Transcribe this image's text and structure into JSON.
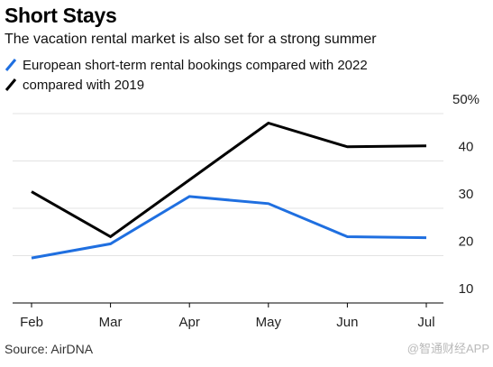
{
  "header": {
    "title": "Short Stays",
    "subtitle": "The vacation rental market is also set for a strong summer"
  },
  "legend": {
    "items": [
      {
        "label": "European short-term rental bookings compared with 2022",
        "color": "#1f6fe0"
      },
      {
        "label": "compared with 2019",
        "color": "#000000"
      }
    ]
  },
  "chart_data": {
    "type": "line",
    "categories": [
      "Feb",
      "Mar",
      "Apr",
      "May",
      "Jun",
      "Jul"
    ],
    "series": [
      {
        "name": "European short-term rental bookings compared with 2022",
        "color": "#1f6fe0",
        "values": [
          19.5,
          22.5,
          32.5,
          31,
          24,
          23.8
        ]
      },
      {
        "name": "compared with 2019",
        "color": "#000000",
        "values": [
          33.5,
          24,
          36,
          48,
          43,
          43.2
        ]
      }
    ],
    "y_ticks": [
      "50%",
      "40",
      "30",
      "20",
      "10"
    ],
    "ylim": [
      10,
      50
    ],
    "grid": true,
    "y_axis_side": "right"
  },
  "footer": {
    "source": "Source: AirDNA",
    "watermark": "@智通财经APP"
  }
}
